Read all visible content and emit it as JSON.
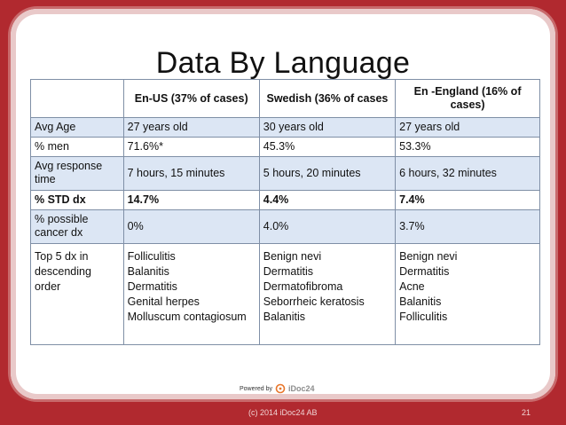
{
  "title": "Data By Language",
  "table": {
    "headers": [
      "",
      "En-US (37% of cases)",
      "Swedish (36% of cases",
      "En -England (16% of cases)"
    ],
    "rows": [
      {
        "label": "Avg Age",
        "values": [
          "27 years old",
          "30 years old",
          "27 years old"
        ]
      },
      {
        "label": "% men",
        "values": [
          "71.6%*",
          "45.3%",
          "53.3%"
        ]
      },
      {
        "label": "Avg response time",
        "values": [
          "7 hours, 15 minutes",
          "5 hours, 20 minutes",
          "6 hours, 32 minutes"
        ]
      },
      {
        "label": "% STD dx",
        "values": [
          "14.7%",
          "4.4%",
          "7.4%"
        ]
      },
      {
        "label": "% possible cancer dx",
        "values": [
          "0%",
          "4.0%",
          "3.7%"
        ]
      },
      {
        "label": "Top 5 dx in descending order",
        "lists": [
          [
            "Folliculitis",
            "Balanitis",
            "Dermatitis",
            "Genital herpes",
            "Molluscum contagiosum"
          ],
          [
            "Benign nevi",
            "Dermatitis",
            "Dermatofibroma",
            "Seborrheic keratosis",
            "Balanitis"
          ],
          [
            "Benign nevi",
            "Dermatitis",
            "Acne",
            "Balanitis",
            "Folliculitis"
          ]
        ]
      }
    ]
  },
  "powered_by": {
    "label": "Powered by",
    "brand": "iDoc24",
    "icon": "idoc24-logo-icon",
    "accent": "#e8762b"
  },
  "footer": {
    "copyright": "(c) 2014 iDoc24 AB",
    "slide_number": "21"
  },
  "colors": {
    "background": "#b1292f",
    "row_blue": "#dce6f4"
  }
}
